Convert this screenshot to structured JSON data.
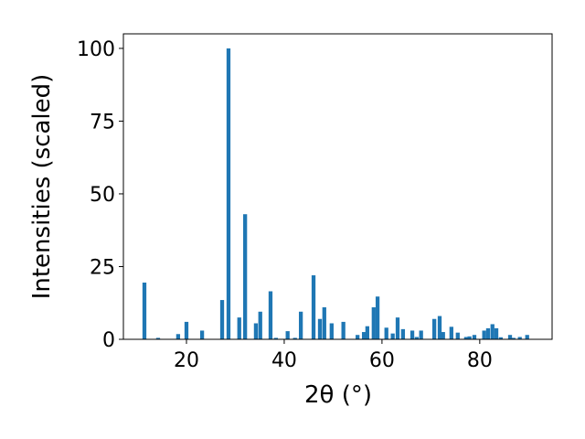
{
  "chart_data": {
    "type": "bar",
    "x_label": "2θ (°)",
    "y_label": "Intensities (scaled)",
    "x": [
      11.4,
      14.2,
      18.3,
      20.0,
      23.2,
      27.3,
      28.6,
      30.8,
      32.0,
      34.2,
      35.1,
      37.2,
      38.3,
      40.7,
      42.2,
      43.4,
      46.0,
      47.3,
      48.2,
      49.7,
      52.1,
      55.0,
      56.3,
      57.0,
      58.3,
      59.1,
      60.9,
      62.2,
      63.2,
      64.3,
      66.2,
      67.1,
      68.0,
      70.7,
      71.8,
      72.5,
      74.2,
      75.5,
      77.2,
      77.9,
      78.9,
      80.9,
      81.7,
      82.6,
      83.4,
      84.3,
      86.2,
      86.9,
      88.2,
      89.7
    ],
    "values": [
      19.5,
      0.5,
      1.8,
      6,
      3,
      13.5,
      100,
      7.5,
      43,
      5.5,
      9.5,
      16.5,
      0.5,
      2.8,
      0.5,
      9.5,
      22,
      7,
      11,
      5.5,
      6,
      1.5,
      2.5,
      4.5,
      11,
      14.7,
      4,
      2,
      7.5,
      3.5,
      3,
      0.8,
      3,
      7,
      8,
      2.5,
      4.3,
      2.3,
      0.8,
      1,
      1.5,
      3,
      3.8,
      5.2,
      3.8,
      0.7,
      1.5,
      0.5,
      0.8,
      1.5
    ],
    "bar_width": 0.8,
    "color": "#1f77b4",
    "xlim": [
      7.1,
      94.8
    ],
    "xticks": [
      20,
      40,
      60,
      80
    ],
    "ylim": [
      0,
      105
    ],
    "yticks": [
      0,
      25,
      50,
      75,
      100
    ]
  }
}
